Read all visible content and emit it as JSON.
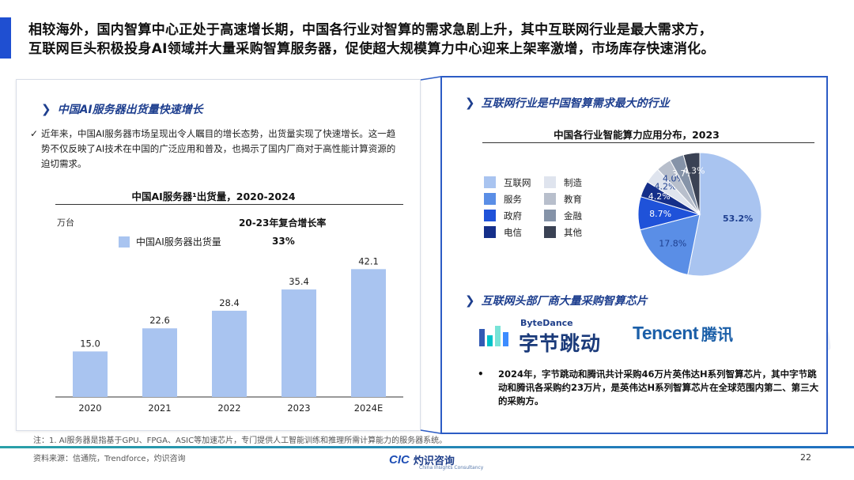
{
  "headline": {
    "line1": "相较海外，国内智算中心正处于高速增长期，中国各行业对智算的需求急剧上升，其中互联网行业是最大需求方，",
    "line2": "互联网巨头积极投身AI领域并大量采购智算服务器，促使超大规模算力中心迎来上架率激增，市场库存快速消化。"
  },
  "left": {
    "section_title": "中国AI服务器出货量快速增长",
    "paragraph": "近年来，中国AI服务器市场呈现出令人瞩目的增长态势，出货量实现了快速增长。这一趋势不仅反映了AI技术在中国的广泛应用和普及，也揭示了国内厂商对于高性能计算资源的迫切需求。",
    "chart_title": "中国AI服务器¹出货量，2020-2024",
    "unit": "万台",
    "cagr_label": "20-23年复合增长率",
    "cagr_value": "33%"
  },
  "right": {
    "section1_title": "互联网行业是中国智算需求最大的行业",
    "pie_title": "中国各行业智能算力应用分布，2023",
    "section2_title": "互联网头部厂商大量采购智算芯片",
    "bytedance_en": "ByteDance",
    "bytedance_cn": "字节跳动",
    "tencent_en": "Tencent",
    "tencent_cn": "腾讯",
    "bullet": "2024年，字节跳动和腾讯共计采购46万片英伟达H系列智算芯片，其中字节跳动和腾讯各采购约23万片，是英伟达H系列智算芯片在全球范围内第二、第三大的采购方。"
  },
  "footer": {
    "footnote": "注：1. AI服务器是指基于GPU、FPGA、ASIC等加速芯片，专门提供人工智能训练和推理所需计算能力的服务器系统。",
    "source": "资料来源：信通院，Trendforce，灼识咨询",
    "page": "22",
    "logo_en": "CIC",
    "logo_cn": "灼识咨询",
    "logo_sub": "China Insights Consultancy"
  },
  "colors": {
    "accent": "#1f4fd1",
    "bar": "#a9c4f0",
    "navy": "#1e3f8f"
  },
  "chart_data": [
    {
      "type": "bar",
      "title": "中国AI服务器¹出货量，2020-2024",
      "ylabel": "万台",
      "categories": [
        "2020",
        "2021",
        "2022",
        "2023",
        "2024E"
      ],
      "series": [
        {
          "name": "中国AI服务器出货量",
          "values": [
            15.0,
            22.6,
            28.4,
            35.4,
            42.1
          ],
          "labels": [
            "15.0",
            "22.6",
            "28.4",
            "35.4",
            "42.1"
          ],
          "color": "#a9c4f0"
        }
      ],
      "annotations": [
        {
          "label": "20-23年复合增长率",
          "value": "33%"
        }
      ],
      "ylim": [
        0,
        50
      ],
      "grid": false
    },
    {
      "type": "pie",
      "title": "中国各行业智能算力应用分布，2023",
      "slices": [
        {
          "name": "互联网",
          "value": 53.2,
          "label": "53.2%",
          "color": "#a9c4f0"
        },
        {
          "name": "服务",
          "value": 17.8,
          "label": "17.8%",
          "color": "#5a8ee6"
        },
        {
          "name": "政府",
          "value": 8.7,
          "label": "8.7%",
          "color": "#1f52d9"
        },
        {
          "name": "电信",
          "value": 4.2,
          "label": "4.2%",
          "color": "#152f8a"
        },
        {
          "name": "制造",
          "value": 4.2,
          "label": "4.2%",
          "color": "#dfe4ee"
        },
        {
          "name": "教育",
          "value": 4.0,
          "label": "4.0%",
          "color": "#b8bfcc"
        },
        {
          "name": "金融",
          "value": 3.7,
          "label": "3.7%",
          "color": "#8593a8"
        },
        {
          "name": "其他",
          "value": 4.3,
          "label": "4.3%",
          "color": "#3a4254"
        }
      ],
      "legend_order": [
        "互联网",
        "制造",
        "服务",
        "教育",
        "政府",
        "金融",
        "电信",
        "其他"
      ],
      "legend": "left"
    }
  ]
}
